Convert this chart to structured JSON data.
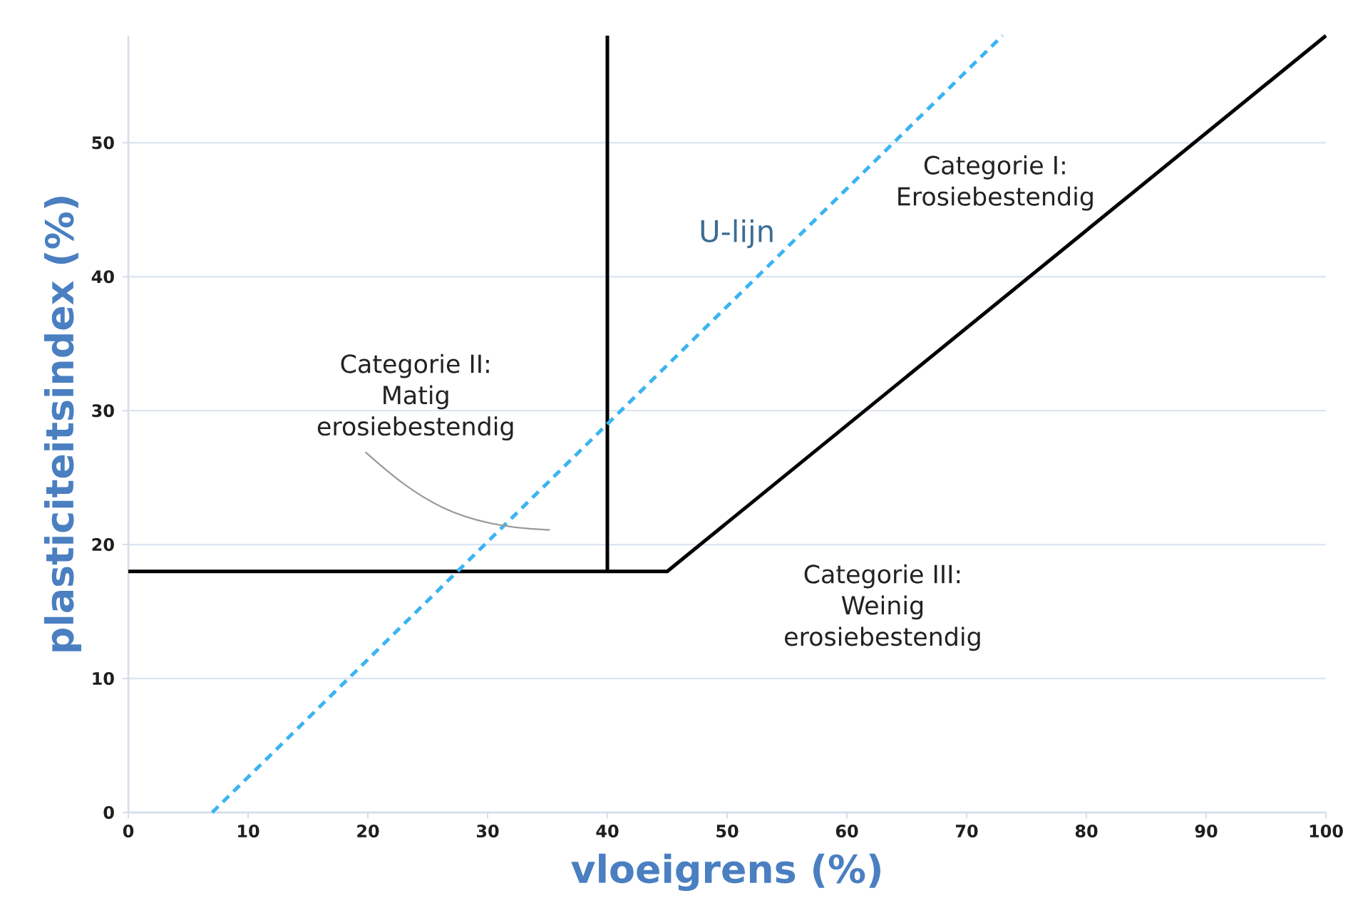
{
  "chart_data": {
    "type": "line",
    "xlabel": "vloeigrens (%)",
    "ylabel": "plasticiteitsindex (%)",
    "series": [
      {
        "color": "#000000",
        "x": [
          0,
          45,
          100
        ],
        "values": [
          18,
          18,
          58
        ]
      },
      {
        "color": "#000000",
        "x": [
          40,
          40
        ],
        "values": [
          18,
          58
        ]
      },
      {
        "name": "U-lijn",
        "color": "#3AB4F2",
        "line_style": "dashed",
        "x": [
          7,
          73
        ],
        "values": [
          0,
          58
        ]
      }
    ],
    "xlim": [
      0,
      100
    ],
    "ylim": [
      0,
      58
    ],
    "xticks": [
      0,
      10,
      20,
      30,
      40,
      50,
      60,
      70,
      80,
      90,
      100
    ],
    "yticks": [
      0,
      10,
      20,
      30,
      40,
      50
    ],
    "grid": "y",
    "line_style": "solid",
    "annotations": [
      "Categorie I: Erosiebestendig",
      "Categorie II: Matig erosiebestendig",
      "Categorie III: Weinig erosiebestendig"
    ]
  }
}
